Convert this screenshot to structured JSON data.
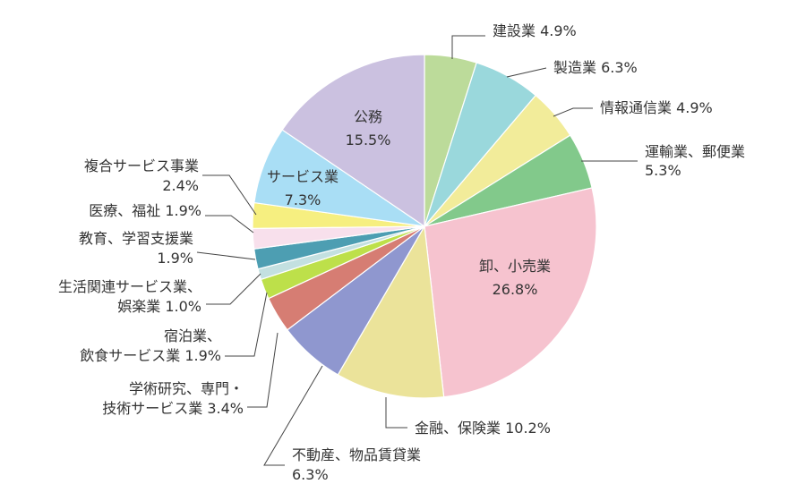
{
  "chart_data": {
    "type": "pie",
    "start_angle_deg": 0,
    "direction": "clockwise",
    "slices": [
      {
        "name": "建設業",
        "value": 4.9,
        "label_lines": [
          "建設業 4.9%"
        ],
        "color": "#bcdb9a"
      },
      {
        "name": "製造業",
        "value": 6.3,
        "label_lines": [
          "製造業 6.3%"
        ],
        "color": "#9ad8dc"
      },
      {
        "name": "情報通信業",
        "value": 4.9,
        "label_lines": [
          "情報通信業 4.9%"
        ],
        "color": "#f2ec9a"
      },
      {
        "name": "運輸業、郵便業",
        "value": 5.3,
        "label_lines": [
          "運輸業、郵便業",
          "5.3%"
        ],
        "color": "#82c98b"
      },
      {
        "name": "卸、小売業",
        "value": 26.8,
        "label_lines": [
          "卸、小売業",
          "26.8%"
        ],
        "color": "#f6c3cf"
      },
      {
        "name": "金融、保険業",
        "value": 10.2,
        "label_lines": [
          "金融、保険業 10.2%"
        ],
        "color": "#ebe39a"
      },
      {
        "name": "不動産、物品賃貸業",
        "value": 6.3,
        "label_lines": [
          "不動産、物品賃貸業",
          "6.3%"
        ],
        "color": "#8f97cf"
      },
      {
        "name": "学術研究、専門・技術サービス業",
        "value": 3.4,
        "label_lines": [
          "学術研究、専門・",
          "技術サービス業 3.4%"
        ],
        "color": "#d67d73"
      },
      {
        "name": "宿泊業、飲食サービス業",
        "value": 1.9,
        "label_lines": [
          "宿泊業、",
          "飲食サービス業 1.9%"
        ],
        "color": "#bde04a"
      },
      {
        "name": "生活関連サービス業、娯楽業",
        "value": 1.0,
        "label_lines": [
          "生活関連サービス業、",
          "娯楽業 1.0%"
        ],
        "color": "#c3e0e0"
      },
      {
        "name": "教育、学習支援業",
        "value": 1.9,
        "label_lines": [
          "教育、学習支援業",
          "1.9%"
        ],
        "color": "#4d9eb2"
      },
      {
        "name": "医療、福祉",
        "value": 1.9,
        "label_lines": [
          "医療、福祉 1.9%"
        ],
        "color": "#f8e0ec"
      },
      {
        "name": "複合サービス事業",
        "value": 2.4,
        "label_lines": [
          "複合サービス事業",
          "2.4%"
        ],
        "color": "#f6ef80"
      },
      {
        "name": "サービス業",
        "value": 7.3,
        "label_lines": [
          "サービス業",
          "7.3%"
        ],
        "color": "#a9def5"
      },
      {
        "name": "公務",
        "value": 15.5,
        "label_lines": [
          "公務",
          "15.5%"
        ],
        "color": "#cbc1e0"
      }
    ]
  }
}
